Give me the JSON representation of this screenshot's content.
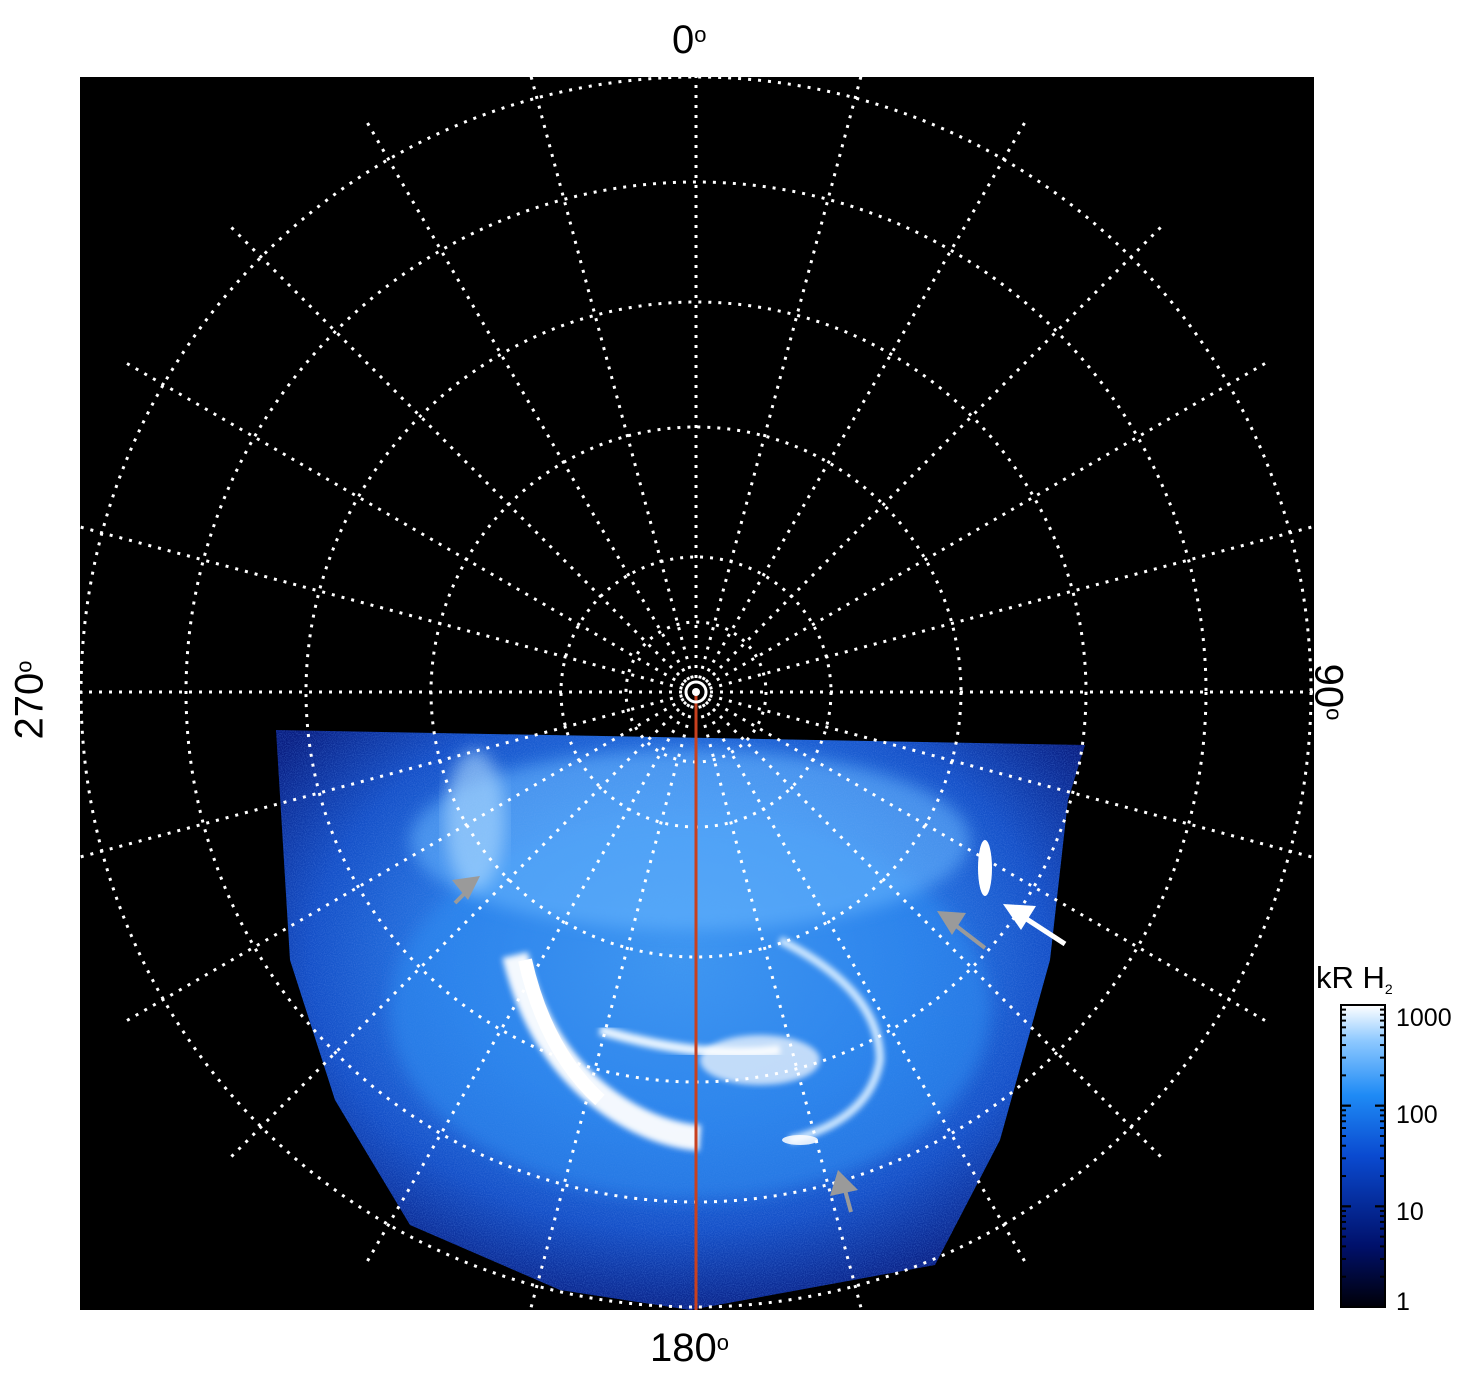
{
  "figure": {
    "axis_labels": {
      "top": "0",
      "right": "90",
      "bottom": "180",
      "left": "270",
      "degree_symbol": "o"
    },
    "colorbar": {
      "title": "kR H",
      "title_subscript": "2",
      "ticks": [
        "1000",
        "100",
        "10",
        "1"
      ],
      "scale": "log",
      "range": [
        1,
        1000
      ],
      "colors": [
        "#000010",
        "#00106a",
        "#1a6fe0",
        "#8cc8ff",
        "#ffffff"
      ]
    },
    "grid": {
      "color": "#ffffff",
      "style": "dotted"
    },
    "meridian_line_color": "#c8401e",
    "arrows": [
      {
        "color": "gray",
        "points_to": "dawn-side arc"
      },
      {
        "color": "gray",
        "points_to": "dusk-side spot"
      },
      {
        "color": "white",
        "points_to": "dusk-side bright spot"
      },
      {
        "color": "gray",
        "points_to": "bottom emission"
      }
    ]
  }
}
